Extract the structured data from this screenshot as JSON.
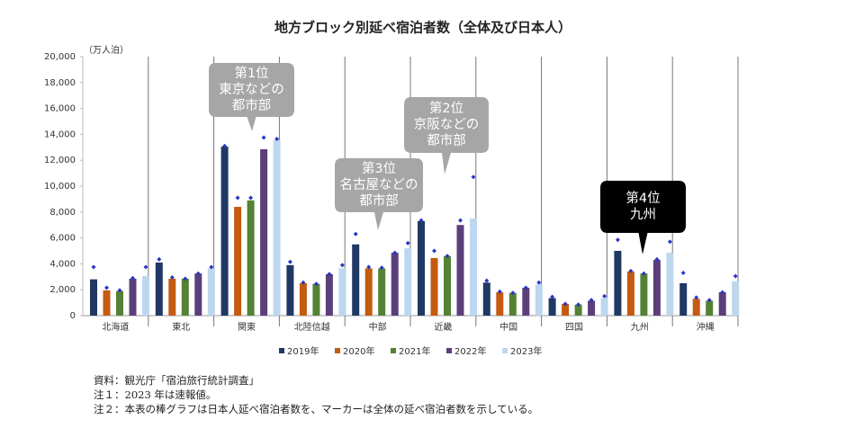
{
  "chart_data": {
    "type": "bar",
    "title": "地方ブロック別延べ宿泊者数（全体及び日本人）",
    "y_axis_label": "（万人泊）",
    "categories": [
      "北海道",
      "東北",
      "関東",
      "北陸信越",
      "中部",
      "近畿",
      "中国",
      "四国",
      "九州",
      "沖縄"
    ],
    "ylim": [
      0,
      20000
    ],
    "yticks": [
      0,
      {
        "value": 2000,
        "label": "2,000"
      },
      {
        "value": 4000,
        "label": "4,000"
      },
      {
        "value": 6000,
        "label": "6,000"
      },
      {
        "value": 8000,
        "label": "8,000"
      },
      {
        "value": 10000,
        "label": "10,000"
      },
      {
        "value": 12000,
        "label": "12,000"
      },
      {
        "value": 14000,
        "label": "14,000"
      },
      {
        "value": 16000,
        "label": "16,000"
      },
      {
        "value": 18000,
        "label": "18,000"
      },
      {
        "value": 20000,
        "label": "20,000"
      }
    ],
    "marker_color": "#2b35c4",
    "series": [
      {
        "name": "2019年",
        "color": "#1f3864",
        "values": [
          2800,
          4100,
          13050,
          3900,
          5500,
          7300,
          2550,
          1350,
          5000,
          2500
        ],
        "totals": [
          3750,
          4350,
          13100,
          4150,
          6300,
          7350,
          2700,
          1450,
          5850,
          3300
        ]
      },
      {
        "name": "2020年",
        "color": "#c55a11",
        "values": [
          1950,
          2850,
          8400,
          2500,
          3650,
          4450,
          1800,
          900,
          3400,
          1300
        ],
        "totals": [
          2150,
          2950,
          9100,
          2550,
          3750,
          5000,
          1850,
          900,
          3450,
          1400
        ]
      },
      {
        "name": "2021年",
        "color": "#548235",
        "values": [
          1900,
          2850,
          8900,
          2450,
          3650,
          4600,
          1750,
          850,
          3250,
          1150
        ],
        "totals": [
          1950,
          2850,
          9100,
          2450,
          3700,
          4600,
          1750,
          850,
          3250,
          1200
        ]
      },
      {
        "name": "2022年",
        "color": "#5b3f7a",
        "values": [
          2850,
          3250,
          12850,
          3200,
          4850,
          7000,
          2150,
          1150,
          4300,
          1800
        ],
        "totals": [
          2900,
          3250,
          13750,
          3200,
          4850,
          7350,
          2150,
          1200,
          4350,
          1800
        ]
      },
      {
        "name": "2023年",
        "color": "#bdd7ee",
        "values": [
          3050,
          3650,
          13550,
          3650,
          5200,
          7500,
          2400,
          1350,
          4850,
          2650
        ],
        "totals": [
          3750,
          3750,
          13650,
          3900,
          5600,
          10700,
          2550,
          1500,
          5700,
          3050
        ]
      }
    ],
    "annotations": [
      {
        "lines": [
          "第1位",
          "東京などの",
          "都市部"
        ],
        "color": "#a6a6a6"
      },
      {
        "lines": [
          "第3位",
          "名古屋などの",
          "都市部"
        ],
        "color": "#a6a6a6"
      },
      {
        "lines": [
          "第2位",
          "京阪などの",
          "都市部"
        ],
        "color": "#a6a6a6"
      },
      {
        "lines": [
          "第4位",
          "九州"
        ],
        "color": "#000000"
      }
    ],
    "notes": [
      "資料：観光庁「宿泊旅行統計調査」",
      "注１：2023 年は速報値。",
      "注２：本表の棒グラフは日本人延べ宿泊者数を、マーカーは全体の延べ宿泊者数を示している。"
    ]
  }
}
